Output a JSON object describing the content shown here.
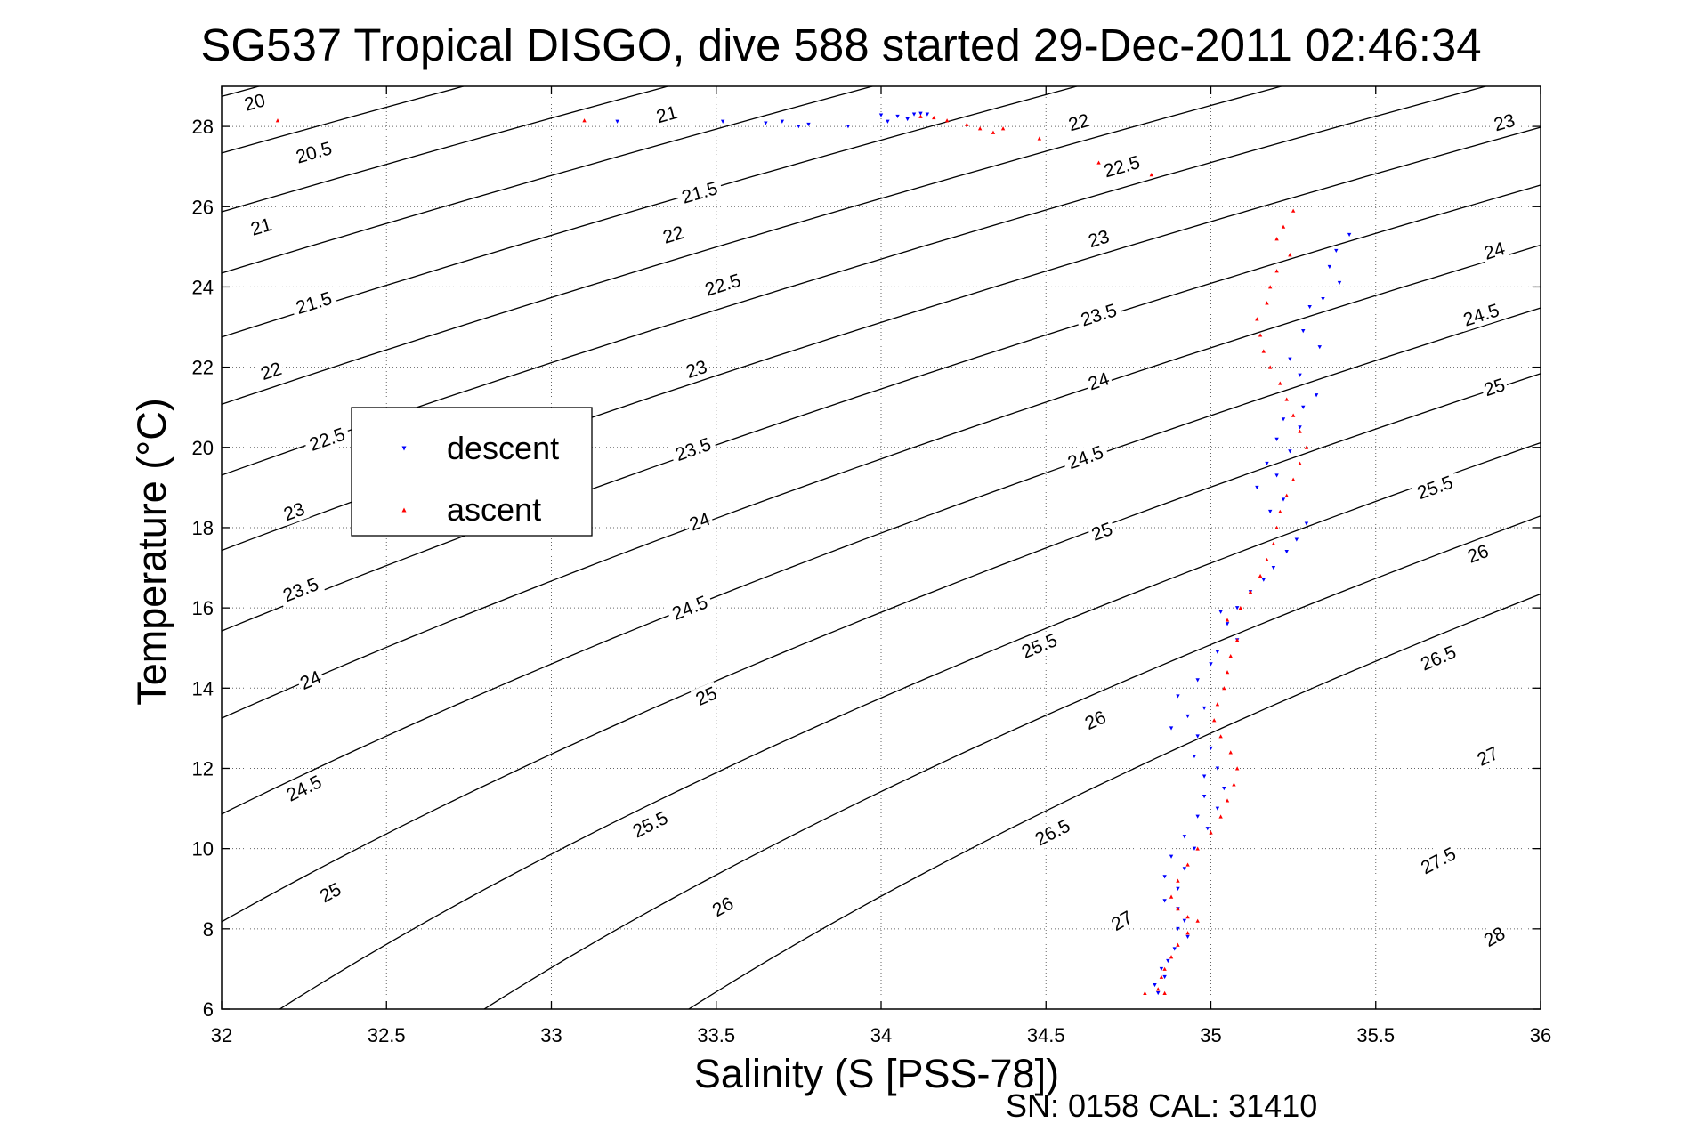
{
  "chart_data": {
    "type": "scatter",
    "title": "SG537 Tropical DISGO, dive 588 started 29-Dec-2011 02:46:34",
    "xlabel": "Salinity (S [PSS-78])",
    "ylabel": "Temperature (°C)",
    "xlim": [
      32,
      36
    ],
    "ylim": [
      6,
      29
    ],
    "xticks": [
      "32",
      "32.5",
      "33",
      "33.5",
      "34",
      "34.5",
      "35",
      "35.5",
      "36"
    ],
    "yticks": [
      "6",
      "8",
      "10",
      "12",
      "14",
      "16",
      "18",
      "20",
      "22",
      "24",
      "26",
      "28"
    ],
    "grid": true,
    "footer": "SN: 0158  CAL: 31410",
    "legend": {
      "placement": "left-center",
      "entries": [
        "descent",
        "ascent"
      ]
    },
    "contours": {
      "quantity": "sigma_t",
      "levels": [
        20,
        20.5,
        21,
        21.5,
        22,
        22.5,
        23,
        23.5,
        24,
        24.5,
        25,
        25.5,
        26,
        26.5,
        27,
        27.5,
        28
      ],
      "labels": [
        {
          "text": "20",
          "s": 32.1,
          "t": 28.6
        },
        {
          "text": "20.5",
          "s": 32.28,
          "t": 27.35
        },
        {
          "text": "21",
          "s": 32.12,
          "t": 25.5
        },
        {
          "text": "21.5",
          "s": 32.28,
          "t": 23.6
        },
        {
          "text": "22",
          "s": 32.15,
          "t": 21.9
        },
        {
          "text": "22.5",
          "s": 32.32,
          "t": 20.2
        },
        {
          "text": "23",
          "s": 32.22,
          "t": 18.4
        },
        {
          "text": "23.5",
          "s": 32.24,
          "t": 16.45
        },
        {
          "text": "24",
          "s": 32.27,
          "t": 14.2
        },
        {
          "text": "24.5",
          "s": 32.25,
          "t": 11.5
        },
        {
          "text": "25",
          "s": 32.33,
          "t": 8.9
        },
        {
          "text": "21",
          "s": 33.35,
          "t": 28.3
        },
        {
          "text": "21.5",
          "s": 33.45,
          "t": 26.35
        },
        {
          "text": "22",
          "s": 33.37,
          "t": 25.3
        },
        {
          "text": "22.5",
          "s": 33.52,
          "t": 24.05
        },
        {
          "text": "23",
          "s": 33.44,
          "t": 21.95
        },
        {
          "text": "23.5",
          "s": 33.43,
          "t": 19.95
        },
        {
          "text": "24",
          "s": 33.45,
          "t": 18.15
        },
        {
          "text": "24.5",
          "s": 33.42,
          "t": 16.0
        },
        {
          "text": "25",
          "s": 33.47,
          "t": 13.8
        },
        {
          "text": "25.5",
          "s": 33.3,
          "t": 10.6
        },
        {
          "text": "26",
          "s": 33.52,
          "t": 8.55
        },
        {
          "text": "22",
          "s": 34.6,
          "t": 28.1
        },
        {
          "text": "22.5",
          "s": 34.73,
          "t": 27.0
        },
        {
          "text": "23",
          "s": 34.66,
          "t": 25.2
        },
        {
          "text": "23.5",
          "s": 34.66,
          "t": 23.3
        },
        {
          "text": "24",
          "s": 34.66,
          "t": 21.65
        },
        {
          "text": "24.5",
          "s": 34.62,
          "t": 19.75
        },
        {
          "text": "25",
          "s": 34.67,
          "t": 17.9
        },
        {
          "text": "25.5",
          "s": 34.48,
          "t": 15.05
        },
        {
          "text": "26",
          "s": 34.65,
          "t": 13.2
        },
        {
          "text": "26.5",
          "s": 34.52,
          "t": 10.4
        },
        {
          "text": "27",
          "s": 34.73,
          "t": 8.2
        },
        {
          "text": "23",
          "s": 35.89,
          "t": 28.1
        },
        {
          "text": "24",
          "s": 35.86,
          "t": 24.9
        },
        {
          "text": "24.5",
          "s": 35.82,
          "t": 23.3
        },
        {
          "text": "25",
          "s": 35.86,
          "t": 21.5
        },
        {
          "text": "25.5",
          "s": 35.68,
          "t": 19.0
        },
        {
          "text": "26",
          "s": 35.81,
          "t": 17.35
        },
        {
          "text": "26.5",
          "s": 35.69,
          "t": 14.75
        },
        {
          "text": "27",
          "s": 35.84,
          "t": 12.3
        },
        {
          "text": "27.5",
          "s": 35.69,
          "t": 9.7
        },
        {
          "text": "28",
          "s": 35.86,
          "t": 7.8
        }
      ]
    },
    "series": [
      {
        "name": "descent",
        "color": "#0000ff",
        "marker": "triangle-down",
        "points": [
          [
            34.0,
            28.28
          ],
          [
            34.05,
            28.25
          ],
          [
            34.1,
            28.3
          ],
          [
            34.12,
            28.32
          ],
          [
            34.14,
            28.3
          ],
          [
            34.08,
            28.18
          ],
          [
            34.02,
            28.12
          ],
          [
            33.9,
            28.0
          ],
          [
            33.78,
            28.05
          ],
          [
            33.75,
            28.0
          ],
          [
            33.7,
            28.12
          ],
          [
            33.65,
            28.08
          ],
          [
            33.52,
            28.12
          ],
          [
            33.2,
            28.12
          ],
          [
            35.42,
            25.3
          ],
          [
            35.38,
            24.9
          ],
          [
            35.36,
            24.5
          ],
          [
            35.39,
            24.1
          ],
          [
            35.34,
            23.7
          ],
          [
            35.3,
            23.5
          ],
          [
            35.28,
            22.9
          ],
          [
            35.33,
            22.5
          ],
          [
            35.24,
            22.2
          ],
          [
            35.27,
            21.8
          ],
          [
            35.32,
            21.3
          ],
          [
            35.28,
            21.0
          ],
          [
            35.22,
            20.7
          ],
          [
            35.27,
            20.5
          ],
          [
            35.2,
            20.2
          ],
          [
            35.24,
            19.9
          ],
          [
            35.17,
            19.6
          ],
          [
            35.2,
            19.3
          ],
          [
            35.14,
            19.0
          ],
          [
            35.22,
            18.7
          ],
          [
            35.18,
            18.4
          ],
          [
            35.29,
            18.1
          ],
          [
            35.26,
            17.7
          ],
          [
            35.23,
            17.4
          ],
          [
            35.19,
            17.0
          ],
          [
            35.16,
            16.7
          ],
          [
            35.12,
            16.4
          ],
          [
            35.08,
            16.0
          ],
          [
            35.03,
            15.9
          ],
          [
            35.05,
            15.6
          ],
          [
            35.08,
            15.2
          ],
          [
            35.02,
            14.9
          ],
          [
            35.0,
            14.6
          ],
          [
            34.96,
            14.2
          ],
          [
            34.9,
            13.8
          ],
          [
            34.98,
            13.5
          ],
          [
            34.93,
            13.3
          ],
          [
            34.88,
            13.0
          ],
          [
            34.96,
            12.8
          ],
          [
            35.0,
            12.5
          ],
          [
            34.95,
            12.3
          ],
          [
            35.02,
            12.0
          ],
          [
            34.98,
            11.8
          ],
          [
            35.04,
            11.5
          ],
          [
            34.98,
            11.3
          ],
          [
            35.02,
            11.0
          ],
          [
            34.96,
            10.8
          ],
          [
            34.99,
            10.5
          ],
          [
            34.92,
            10.3
          ],
          [
            34.95,
            10.0
          ],
          [
            34.88,
            9.8
          ],
          [
            34.92,
            9.5
          ],
          [
            34.86,
            9.3
          ],
          [
            34.9,
            9.0
          ],
          [
            34.86,
            8.7
          ],
          [
            34.9,
            8.5
          ],
          [
            34.92,
            8.2
          ],
          [
            34.9,
            8.0
          ],
          [
            34.93,
            7.8
          ],
          [
            34.89,
            7.5
          ],
          [
            34.87,
            7.2
          ],
          [
            34.85,
            7.0
          ],
          [
            34.86,
            6.8
          ],
          [
            34.83,
            6.6
          ],
          [
            34.84,
            6.4
          ]
        ]
      },
      {
        "name": "ascent",
        "color": "#ff0000",
        "marker": "triangle-up",
        "points": [
          [
            32.17,
            28.15
          ],
          [
            33.1,
            28.15
          ],
          [
            34.12,
            28.25
          ],
          [
            34.16,
            28.22
          ],
          [
            34.2,
            28.15
          ],
          [
            34.26,
            28.05
          ],
          [
            34.3,
            27.95
          ],
          [
            34.34,
            27.85
          ],
          [
            34.37,
            27.95
          ],
          [
            34.48,
            27.7
          ],
          [
            34.66,
            27.1
          ],
          [
            34.82,
            26.8
          ],
          [
            35.25,
            25.9
          ],
          [
            35.22,
            25.5
          ],
          [
            35.2,
            25.2
          ],
          [
            35.24,
            24.8
          ],
          [
            35.2,
            24.4
          ],
          [
            35.18,
            24.0
          ],
          [
            35.17,
            23.6
          ],
          [
            35.14,
            23.2
          ],
          [
            35.15,
            22.8
          ],
          [
            35.16,
            22.4
          ],
          [
            35.18,
            22.0
          ],
          [
            35.21,
            21.6
          ],
          [
            35.23,
            21.2
          ],
          [
            35.25,
            20.8
          ],
          [
            35.27,
            20.4
          ],
          [
            35.29,
            20.0
          ],
          [
            35.27,
            19.6
          ],
          [
            35.25,
            19.2
          ],
          [
            35.23,
            18.8
          ],
          [
            35.21,
            18.4
          ],
          [
            35.2,
            18.0
          ],
          [
            35.19,
            17.6
          ],
          [
            35.17,
            17.2
          ],
          [
            35.15,
            16.8
          ],
          [
            35.12,
            16.4
          ],
          [
            35.09,
            16.0
          ],
          [
            35.05,
            15.7
          ],
          [
            35.08,
            15.2
          ],
          [
            35.06,
            14.8
          ],
          [
            35.05,
            14.4
          ],
          [
            35.04,
            14.0
          ],
          [
            35.02,
            13.6
          ],
          [
            35.01,
            13.2
          ],
          [
            35.03,
            12.8
          ],
          [
            35.06,
            12.4
          ],
          [
            35.08,
            12.0
          ],
          [
            35.07,
            11.6
          ],
          [
            35.05,
            11.2
          ],
          [
            35.03,
            10.8
          ],
          [
            35.0,
            10.4
          ],
          [
            34.96,
            10.0
          ],
          [
            34.93,
            9.6
          ],
          [
            34.9,
            9.2
          ],
          [
            34.88,
            8.8
          ],
          [
            34.9,
            8.5
          ],
          [
            34.93,
            8.3
          ],
          [
            34.96,
            8.2
          ],
          [
            34.93,
            7.9
          ],
          [
            34.9,
            7.6
          ],
          [
            34.88,
            7.3
          ],
          [
            34.86,
            7.0
          ],
          [
            34.85,
            6.8
          ],
          [
            34.84,
            6.5
          ],
          [
            34.8,
            6.4
          ],
          [
            34.86,
            6.4
          ]
        ]
      }
    ]
  }
}
